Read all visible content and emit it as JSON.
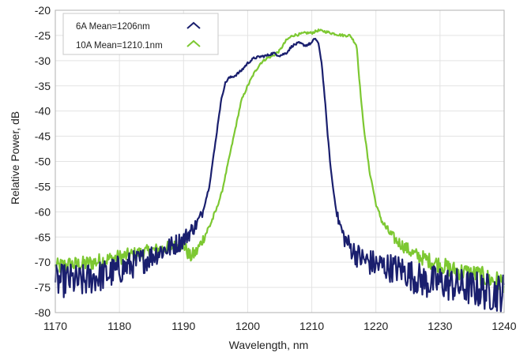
{
  "chart_data": {
    "type": "line",
    "xlabel": "Wavelength, nm",
    "ylabel": "Relative Power, dB",
    "xlim": [
      1170,
      1240
    ],
    "ylim": [
      -80,
      -20
    ],
    "xticks": [
      1170,
      1180,
      1190,
      1200,
      1210,
      1220,
      1230,
      1240
    ],
    "yticks": [
      -80,
      -75,
      -70,
      -65,
      -60,
      -55,
      -50,
      -45,
      -40,
      -35,
      -30,
      -25,
      -20
    ],
    "grid": true,
    "legend_position": "top-left",
    "series": [
      {
        "name": "6A Mean=1206nm",
        "color": "#1a1f6e",
        "noise": 2.2,
        "x": [
          1170,
          1172,
          1174,
          1176,
          1178,
          1180,
          1182,
          1184,
          1186,
          1188,
          1190,
          1191,
          1192,
          1193,
          1194,
          1195,
          1195.5,
          1196,
          1196.5,
          1197,
          1198,
          1199,
          1200,
          1201,
          1202,
          1203,
          1204,
          1205,
          1206,
          1207,
          1208,
          1209,
          1210,
          1210.5,
          1211,
          1211.5,
          1212,
          1212.5,
          1213,
          1213.5,
          1214,
          1215,
          1216,
          1217,
          1218,
          1219,
          1220,
          1222,
          1224,
          1226,
          1228,
          1230,
          1232,
          1234,
          1236,
          1238,
          1240
        ],
        "y": [
          -74,
          -73.5,
          -74,
          -73,
          -72.5,
          -71.5,
          -70.5,
          -69.5,
          -68,
          -67,
          -65.5,
          -64,
          -62.5,
          -60,
          -55,
          -46,
          -41,
          -37,
          -34.5,
          -33.5,
          -33,
          -32,
          -30.5,
          -29.5,
          -29.2,
          -29,
          -28.5,
          -29,
          -28.5,
          -27,
          -26.5,
          -27,
          -26.5,
          -25.5,
          -26.5,
          -30,
          -37,
          -45,
          -52,
          -57,
          -61,
          -65,
          -67,
          -68.5,
          -69.5,
          -70,
          -70.5,
          -71,
          -71.5,
          -73,
          -74,
          -74,
          -74.5,
          -75,
          -75.5,
          -76,
          -76
        ]
      },
      {
        "name": "10A Mean=1210.1nm",
        "color": "#7dc832",
        "noise": 1.3,
        "x": [
          1170,
          1172,
          1174,
          1176,
          1178,
          1180,
          1182,
          1184,
          1186,
          1188,
          1190,
          1191,
          1192,
          1193,
          1194,
          1195,
          1196,
          1197,
          1198,
          1199,
          1200,
          1201,
          1202,
          1203,
          1204,
          1205,
          1206,
          1207,
          1208,
          1209,
          1210,
          1211,
          1212,
          1213,
          1214,
          1215,
          1216,
          1217,
          1217.5,
          1218,
          1218.5,
          1219,
          1219.5,
          1220,
          1221,
          1222,
          1223,
          1224,
          1225,
          1226,
          1228,
          1230,
          1232,
          1234,
          1236,
          1238,
          1240
        ],
        "y": [
          -71,
          -70.5,
          -70.5,
          -70,
          -69.5,
          -69,
          -68.5,
          -68,
          -67.5,
          -67,
          -66.5,
          -69,
          -68,
          -65.5,
          -63,
          -60,
          -56,
          -50,
          -44,
          -38,
          -35,
          -32.5,
          -30.5,
          -29.5,
          -29,
          -28,
          -26,
          -25,
          -24.8,
          -24.5,
          -24.5,
          -24,
          -24.2,
          -24.5,
          -24.8,
          -25,
          -25,
          -27,
          -35,
          -42,
          -47,
          -52,
          -55,
          -58.5,
          -62,
          -64,
          -65.5,
          -66.5,
          -67.5,
          -68.5,
          -69.5,
          -70.5,
          -71.5,
          -72,
          -72.5,
          -73.5,
          -74
        ]
      }
    ]
  }
}
